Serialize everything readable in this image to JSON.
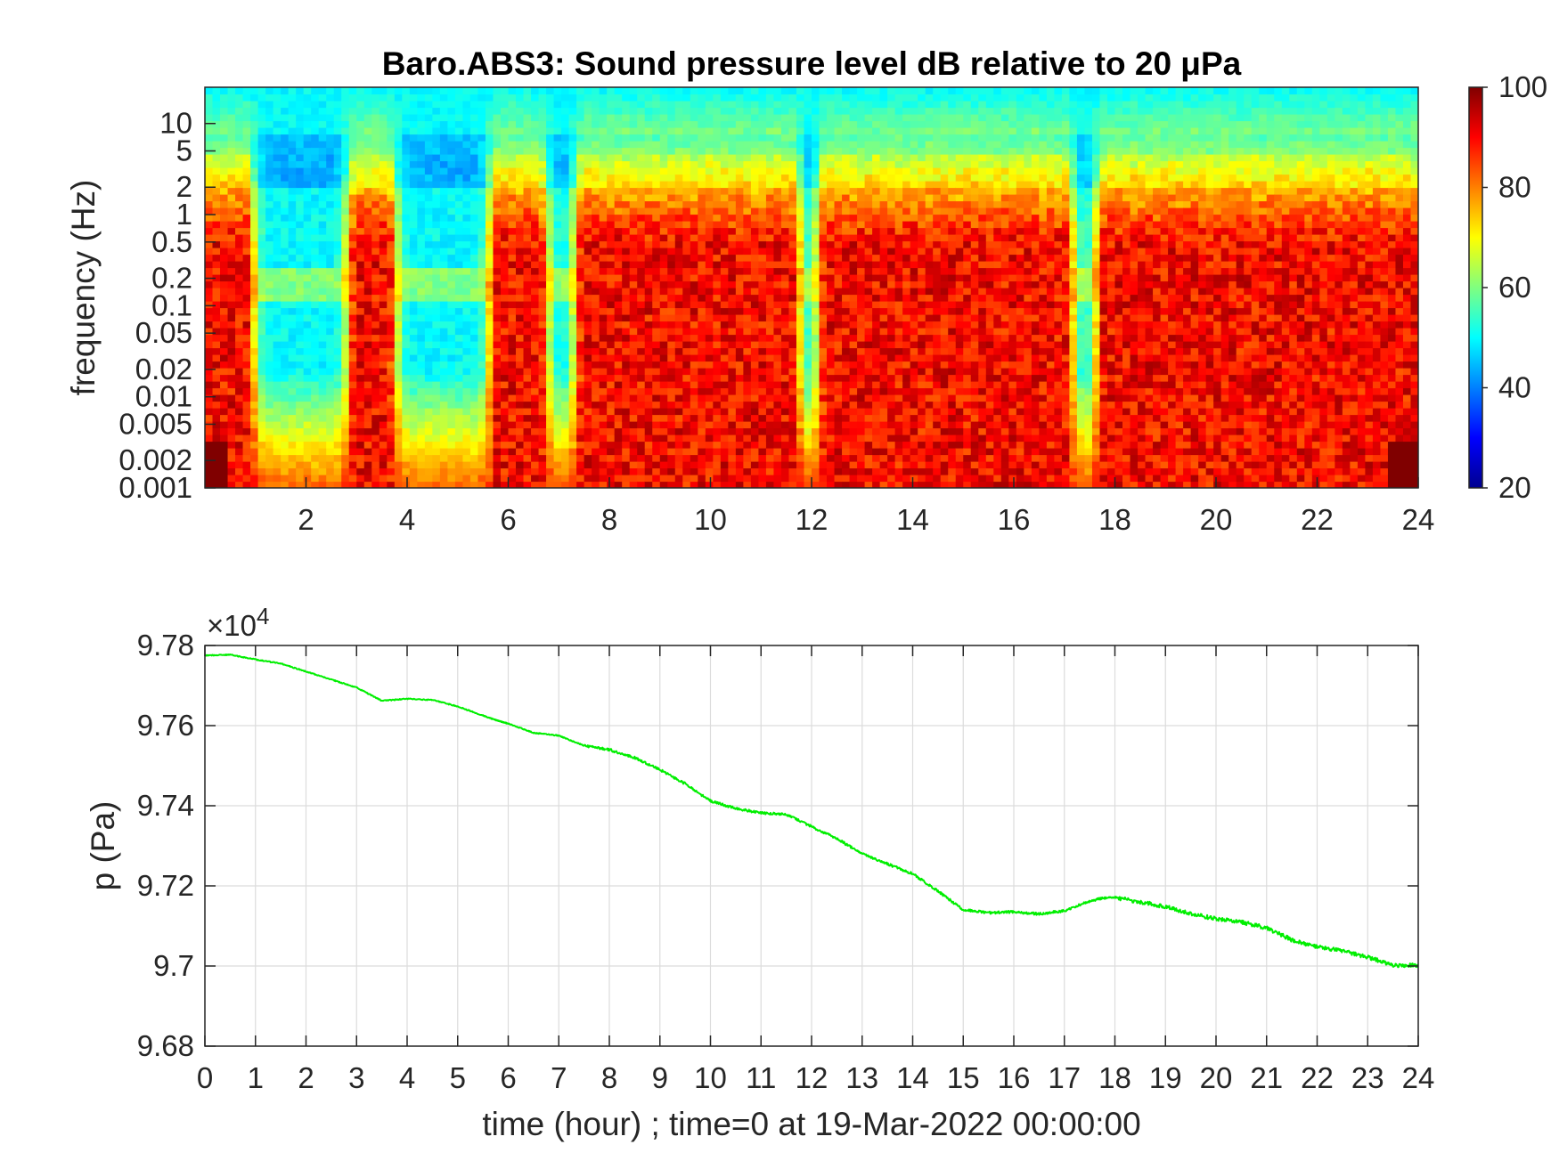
{
  "chart_data": [
    {
      "type": "heatmap",
      "title": "Baro.ABS3: Sound pressure level dB relative to 20 μPa",
      "xlabel": "",
      "ylabel": "frequency (Hz)",
      "xlim": [
        0,
        24
      ],
      "x_ticks": [
        "2",
        "4",
        "6",
        "8",
        "10",
        "12",
        "14",
        "16",
        "18",
        "20",
        "22",
        "24"
      ],
      "y_scale": "log",
      "ylim": [
        0.001,
        25
      ],
      "y_ticks": [
        "0.001",
        "0.002",
        "0.005",
        "0.01",
        "0.02",
        "0.05",
        "0.1",
        "0.2",
        "0.5",
        "1",
        "2",
        "5",
        "10"
      ],
      "colorbar": {
        "min": 20,
        "max": 100,
        "ticks": [
          "20",
          "40",
          "60",
          "80",
          "100"
        ],
        "colormap": "jet"
      },
      "active_periods_hours": [
        [
          0,
          0.8
        ],
        [
          3.0,
          3.6
        ],
        [
          5.8,
          6.6
        ],
        [
          7.5,
          11.6
        ],
        [
          12.3,
          17.0
        ],
        [
          17.8,
          24.0
        ]
      ],
      "typical_levels_db": {
        "quiet_high_freq": 50,
        "active_low_freq": 90,
        "peak": 100
      }
    },
    {
      "type": "line",
      "title": "",
      "xlabel": "time (hour) ; time=0 at 19-Mar-2022 00:00:00",
      "ylabel": "p (Pa)",
      "y_exponent": "×10",
      "y_exponent_power": "4",
      "xlim": [
        0,
        24
      ],
      "ylim": [
        96800,
        97800
      ],
      "x_ticks": [
        "0",
        "1",
        "2",
        "3",
        "4",
        "5",
        "6",
        "7",
        "8",
        "9",
        "10",
        "11",
        "12",
        "13",
        "14",
        "15",
        "16",
        "17",
        "18",
        "19",
        "20",
        "21",
        "22",
        "23",
        "24"
      ],
      "y_ticks": [
        "9.68",
        "9.7",
        "9.72",
        "9.74",
        "9.76",
        "9.78"
      ],
      "grid": true,
      "series": [
        {
          "color": "#00ee00",
          "x": [
            0,
            0.5,
            1,
            1.5,
            2,
            2.5,
            3,
            3.5,
            4,
            4.5,
            5,
            5.5,
            5.8,
            6,
            6.5,
            7,
            7.5,
            8,
            8.5,
            9,
            9.5,
            10,
            10.5,
            11,
            11.5,
            12,
            12.5,
            13,
            13.5,
            14,
            14.5,
            15,
            15.5,
            16,
            16.5,
            17,
            17.5,
            17.9,
            18.5,
            19,
            19.5,
            20,
            20.5,
            21,
            21.5,
            22,
            22.5,
            23,
            23.5,
            24
          ],
          "y": [
            97775,
            97777,
            97765,
            97755,
            97735,
            97715,
            97695,
            97662,
            97667,
            97664,
            97648,
            97625,
            97612,
            97605,
            97582,
            97575,
            97550,
            97540,
            97520,
            97490,
            97455,
            97412,
            97393,
            97382,
            97378,
            97348,
            97318,
            97280,
            97255,
            97230,
            97187,
            97140,
            97133,
            97135,
            97130,
            97138,
            97162,
            97173,
            97160,
            97148,
            97130,
            97118,
            97110,
            97095,
            97065,
            97048,
            97038,
            97022,
            97002,
            97002
          ]
        }
      ]
    }
  ]
}
